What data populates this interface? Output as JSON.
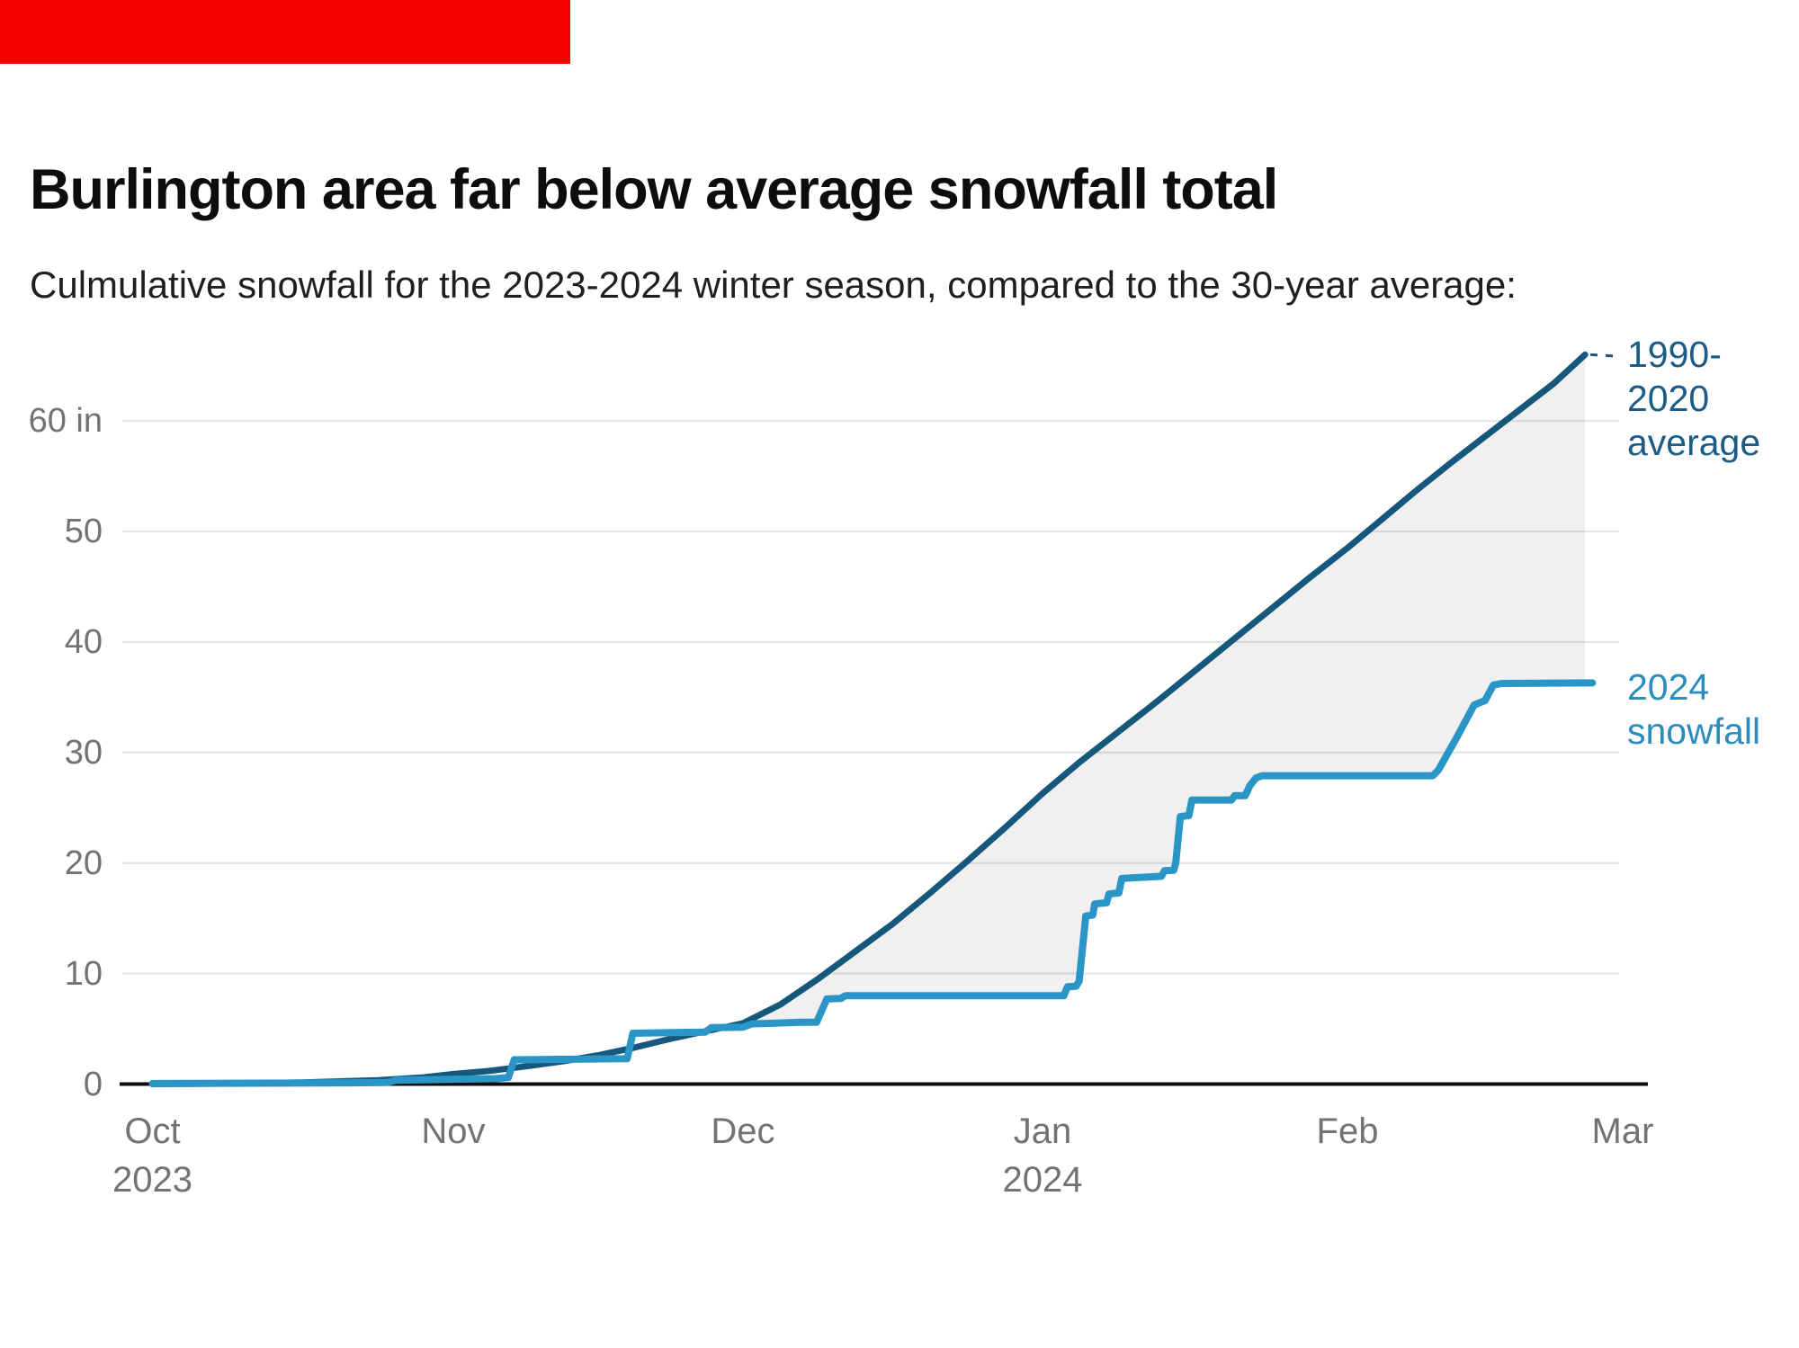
{
  "page": {
    "title": "Burlington area far below average snowfall total",
    "subtitle": "Culmulative snowfall for the 2023-2024 winter season, compared to the 30-year average:",
    "red_bar_color": "#f70000"
  },
  "chart_data": {
    "type": "line",
    "title": "Burlington area far below average snowfall total",
    "subtitle": "Culmulative snowfall for the 2023-2024 winter season, compared to the 30-year average:",
    "x_unit": "months (0 = Oct 1 2023, 5 = Mar 1 2024)",
    "y_unit": "inches of snow",
    "ylim": [
      0,
      66
    ],
    "grid": "horizontal only",
    "legend_position": "right-of-line labels",
    "x_axis": {
      "ticks": [
        {
          "label": "Oct",
          "sublabel": "2023"
        },
        {
          "label": "Nov",
          "sublabel": ""
        },
        {
          "label": "Dec",
          "sublabel": ""
        },
        {
          "label": "Jan",
          "sublabel": "2024"
        },
        {
          "label": "Feb",
          "sublabel": ""
        },
        {
          "label": "Mar",
          "sublabel": ""
        }
      ]
    },
    "y_axis": {
      "ticks": [
        {
          "label": "60 in",
          "value": 60
        },
        {
          "label": "50",
          "value": 50
        },
        {
          "label": "40",
          "value": 40
        },
        {
          "label": "30",
          "value": 30
        },
        {
          "label": "20",
          "value": 20
        },
        {
          "label": "10",
          "value": 10
        },
        {
          "label": "0",
          "value": 0
        }
      ]
    },
    "series": [
      {
        "name": "1990-2020 average",
        "label_lines": "1990-\n2020\naverage",
        "color": "#15587b",
        "label_color": "#1a5c85",
        "style": "smooth",
        "stroke_width": 7,
        "end_dash_leader": true,
        "points": [
          [
            0,
            0
          ],
          [
            0.25,
            0.05
          ],
          [
            0.5,
            0.15
          ],
          [
            0.75,
            0.35
          ],
          [
            0.9,
            0.6
          ],
          [
            1,
            0.9
          ],
          [
            1.125,
            1.2
          ],
          [
            1.25,
            1.6
          ],
          [
            1.375,
            2.05
          ],
          [
            1.5,
            2.6
          ],
          [
            1.625,
            3.3
          ],
          [
            1.75,
            4.1
          ],
          [
            1.875,
            4.8
          ],
          [
            2,
            5.5
          ],
          [
            2.125,
            7.2
          ],
          [
            2.25,
            9.5
          ],
          [
            2.375,
            12
          ],
          [
            2.5,
            14.5
          ],
          [
            2.625,
            17.3
          ],
          [
            2.75,
            20.2
          ],
          [
            2.875,
            23.2
          ],
          [
            3,
            26.3
          ],
          [
            3.125,
            29.2
          ],
          [
            3.25,
            31.9
          ],
          [
            3.375,
            34.6
          ],
          [
            3.5,
            37.4
          ],
          [
            3.625,
            40.2
          ],
          [
            3.75,
            43
          ],
          [
            3.875,
            45.8
          ],
          [
            4,
            48.5
          ],
          [
            4.125,
            51.1
          ],
          [
            4.25,
            53.7
          ],
          [
            4.375,
            56.2
          ],
          [
            4.5,
            58.6
          ],
          [
            4.625,
            61
          ],
          [
            4.75,
            63.4
          ],
          [
            4.863,
            66
          ]
        ]
      },
      {
        "name": "2024 snowfall",
        "label_lines": "2024\nsnowfall",
        "color": "#2a96c8",
        "label_color": "#2b8cbd",
        "style": "step",
        "stroke_width": 8,
        "end_dash_leader": false,
        "points": [
          [
            0,
            0.05
          ],
          [
            0.6,
            0.1
          ],
          [
            0.78,
            0.15
          ],
          [
            0.81,
            0.35
          ],
          [
            1.05,
            0.45
          ],
          [
            1.15,
            0.5
          ],
          [
            1.19,
            0.6
          ],
          [
            1.21,
            2.2
          ],
          [
            1.6,
            2.3
          ],
          [
            1.62,
            4.6
          ],
          [
            1.87,
            4.7
          ],
          [
            1.89,
            5.1
          ],
          [
            2.0,
            5.15
          ],
          [
            2.03,
            5.45
          ],
          [
            2.1,
            5.5
          ],
          [
            2.2,
            5.6
          ],
          [
            2.246,
            5.6
          ],
          [
            2.28,
            7.7
          ],
          [
            2.327,
            7.75
          ],
          [
            2.342,
            8.0
          ],
          [
            3.07,
            8.0
          ],
          [
            3.082,
            8.8
          ],
          [
            3.11,
            8.85
          ],
          [
            3.12,
            9.3
          ],
          [
            3.142,
            15.2
          ],
          [
            3.165,
            15.3
          ],
          [
            3.171,
            16.3
          ],
          [
            3.21,
            16.4
          ],
          [
            3.218,
            17.2
          ],
          [
            3.25,
            17.3
          ],
          [
            3.26,
            18.6
          ],
          [
            3.39,
            18.8
          ],
          [
            3.4,
            19.3
          ],
          [
            3.43,
            19.35
          ],
          [
            3.437,
            20
          ],
          [
            3.452,
            24.2
          ],
          [
            3.48,
            24.3
          ],
          [
            3.49,
            25.7
          ],
          [
            3.62,
            25.7
          ],
          [
            3.63,
            26.1
          ],
          [
            3.665,
            26.1
          ],
          [
            3.68,
            27.0
          ],
          [
            3.7,
            27.7
          ],
          [
            3.72,
            27.9
          ],
          [
            4.31,
            27.9
          ],
          [
            4.33,
            28.4
          ],
          [
            4.4,
            31.5
          ],
          [
            4.46,
            34.3
          ],
          [
            4.5,
            34.7
          ],
          [
            4.53,
            36.1
          ],
          [
            4.56,
            36.25
          ],
          [
            4.89,
            36.3
          ]
        ]
      }
    ],
    "fill_between": {
      "upper": "1990-2020 average",
      "lower": "2024 snowfall",
      "from_month": 2.06,
      "to_month": 4.863,
      "color": "rgba(0,0,0,0.06)"
    },
    "colors": {
      "grid": "#e3e3e3",
      "axis": "#0d0d0d",
      "tick_text": "#737373"
    }
  }
}
